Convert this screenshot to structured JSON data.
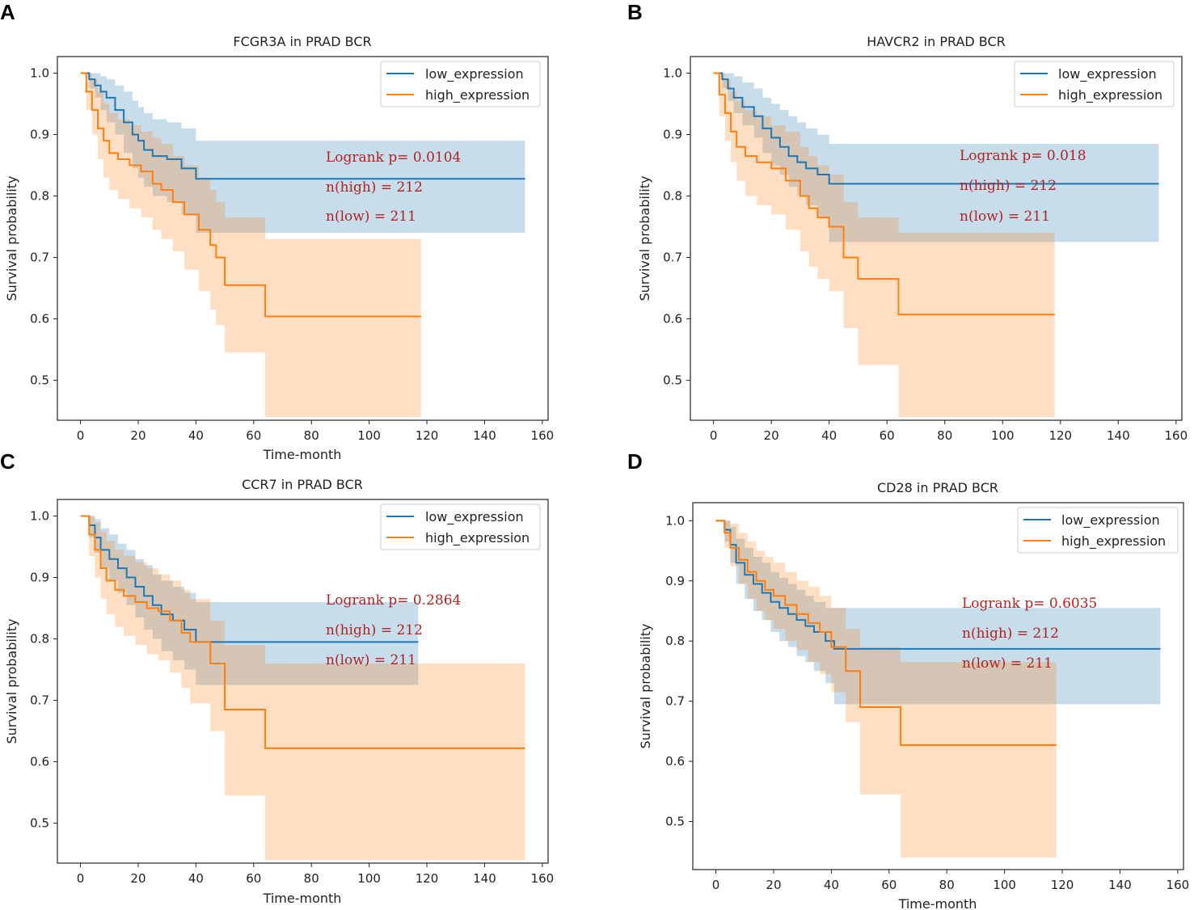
{
  "chart_data": [
    {
      "type": "line",
      "panel": "A",
      "title": "FCGR3A in PRAD BCR",
      "xlabel": "Time-month",
      "ylabel": "Survival probability",
      "xlim": [
        -8,
        162
      ],
      "ylim": [
        0.435,
        1.027
      ],
      "xticks": [
        0,
        20,
        40,
        60,
        80,
        100,
        120,
        140,
        160
      ],
      "yticks": [
        0.5,
        0.6,
        0.7,
        0.8,
        0.9,
        1.0
      ],
      "legend": [
        "low_expression",
        "high_expression"
      ],
      "legend_position": "top-right",
      "annotations": [
        "Logrank p= 0.0104",
        "n(high) = 212",
        "n(low) = 211"
      ],
      "series": [
        {
          "name": "low_expression",
          "color": "#1f77b4",
          "fill": "#1f77b4",
          "x": [
            0,
            3,
            5,
            7,
            9,
            12,
            15,
            18,
            20,
            22,
            25,
            30,
            35,
            40,
            154
          ],
          "y": [
            1.0,
            0.99,
            0.98,
            0.97,
            0.96,
            0.94,
            0.92,
            0.9,
            0.89,
            0.875,
            0.865,
            0.86,
            0.845,
            0.828,
            0.828
          ],
          "ci_upper": [
            1.0,
            1.0,
            1.0,
            0.995,
            0.99,
            0.98,
            0.97,
            0.955,
            0.945,
            0.935,
            0.925,
            0.92,
            0.91,
            0.89,
            0.89
          ],
          "ci_lower": [
            1.0,
            0.975,
            0.96,
            0.94,
            0.92,
            0.9,
            0.87,
            0.845,
            0.83,
            0.815,
            0.8,
            0.79,
            0.77,
            0.74,
            0.74
          ]
        },
        {
          "name": "high_expression",
          "color": "#ff7f0e",
          "fill": "#ff7f0e",
          "x": [
            0,
            2,
            4,
            6,
            8,
            10,
            13,
            17,
            21,
            25,
            28,
            32,
            36,
            41,
            45,
            47,
            50,
            64,
            118
          ],
          "y": [
            1.0,
            0.97,
            0.94,
            0.91,
            0.89,
            0.87,
            0.86,
            0.85,
            0.84,
            0.82,
            0.81,
            0.79,
            0.77,
            0.745,
            0.72,
            0.7,
            0.655,
            0.604,
            0.604
          ],
          "ci_upper": [
            1.0,
            1.0,
            0.99,
            0.97,
            0.95,
            0.935,
            0.925,
            0.915,
            0.905,
            0.895,
            0.885,
            0.865,
            0.85,
            0.83,
            0.81,
            0.79,
            0.765,
            0.73,
            0.73
          ],
          "ci_lower": [
            1.0,
            0.94,
            0.9,
            0.86,
            0.83,
            0.81,
            0.795,
            0.78,
            0.765,
            0.745,
            0.73,
            0.71,
            0.68,
            0.645,
            0.615,
            0.59,
            0.545,
            0.44,
            0.44
          ]
        }
      ]
    },
    {
      "type": "line",
      "panel": "B",
      "title": "HAVCR2 in PRAD BCR",
      "xlabel": "",
      "ylabel": "Survival probability",
      "xlim": [
        -8,
        162
      ],
      "ylim": [
        0.435,
        1.027
      ],
      "xticks": [
        0,
        20,
        40,
        60,
        80,
        100,
        120,
        140,
        160
      ],
      "yticks": [
        0.5,
        0.6,
        0.7,
        0.8,
        0.9,
        1.0
      ],
      "legend": [
        "low_expression",
        "high_expression"
      ],
      "legend_position": "top-right",
      "annotations": [
        "Logrank p= 0.018",
        "n(high) = 212",
        "n(low) = 211"
      ],
      "series": [
        {
          "name": "low_expression",
          "color": "#1f77b4",
          "fill": "#1f77b4",
          "x": [
            0,
            3,
            5,
            7,
            10,
            14,
            17,
            20,
            23,
            26,
            29,
            32,
            36,
            40,
            154
          ],
          "y": [
            1.0,
            0.99,
            0.975,
            0.96,
            0.945,
            0.93,
            0.91,
            0.895,
            0.88,
            0.865,
            0.855,
            0.845,
            0.835,
            0.82,
            0.82
          ],
          "ci_upper": [
            1.0,
            1.0,
            1.0,
            0.995,
            0.985,
            0.975,
            0.96,
            0.95,
            0.94,
            0.93,
            0.92,
            0.91,
            0.9,
            0.885,
            0.885
          ],
          "ci_lower": [
            1.0,
            0.975,
            0.955,
            0.935,
            0.915,
            0.895,
            0.87,
            0.85,
            0.835,
            0.815,
            0.8,
            0.785,
            0.765,
            0.725,
            0.725
          ]
        },
        {
          "name": "high_expression",
          "color": "#ff7f0e",
          "fill": "#ff7f0e",
          "x": [
            0,
            2,
            4,
            6,
            8,
            11,
            15,
            20,
            25,
            30,
            33,
            36,
            40,
            45,
            50,
            64,
            118
          ],
          "y": [
            1.0,
            0.965,
            0.935,
            0.905,
            0.88,
            0.865,
            0.855,
            0.845,
            0.825,
            0.8,
            0.78,
            0.765,
            0.75,
            0.7,
            0.665,
            0.607,
            0.607
          ],
          "ci_upper": [
            1.0,
            1.0,
            0.99,
            0.97,
            0.955,
            0.94,
            0.93,
            0.915,
            0.905,
            0.88,
            0.865,
            0.85,
            0.835,
            0.79,
            0.765,
            0.74,
            0.74
          ],
          "ci_lower": [
            1.0,
            0.93,
            0.89,
            0.855,
            0.825,
            0.8,
            0.785,
            0.77,
            0.745,
            0.71,
            0.685,
            0.665,
            0.645,
            0.585,
            0.525,
            0.44,
            0.44
          ]
        }
      ]
    },
    {
      "type": "line",
      "panel": "C",
      "title": "CCR7 in PRAD BCR",
      "xlabel": "Time-month",
      "ylabel": "Survival probability",
      "xlim": [
        -8,
        162
      ],
      "ylim": [
        0.435,
        1.027
      ],
      "xticks": [
        0,
        20,
        40,
        60,
        80,
        100,
        120,
        140,
        160
      ],
      "yticks": [
        0.5,
        0.6,
        0.7,
        0.8,
        0.9,
        1.0
      ],
      "legend": [
        "low_expression",
        "high_expression"
      ],
      "legend_position": "top-right",
      "annotations": [
        "Logrank p= 0.2864",
        "n(high) = 212",
        "n(low) = 211"
      ],
      "series": [
        {
          "name": "low_expression",
          "color": "#1f77b4",
          "fill": "#1f77b4",
          "x": [
            0,
            3,
            5,
            7,
            10,
            13,
            16,
            19,
            22,
            25,
            28,
            32,
            36,
            40,
            117
          ],
          "y": [
            1.0,
            0.985,
            0.965,
            0.945,
            0.93,
            0.915,
            0.9,
            0.885,
            0.87,
            0.855,
            0.84,
            0.83,
            0.815,
            0.795,
            0.795
          ],
          "ci_upper": [
            1.0,
            1.0,
            0.995,
            0.98,
            0.97,
            0.955,
            0.945,
            0.93,
            0.92,
            0.905,
            0.895,
            0.885,
            0.875,
            0.86,
            0.86
          ],
          "ci_lower": [
            1.0,
            0.965,
            0.94,
            0.915,
            0.895,
            0.875,
            0.855,
            0.835,
            0.815,
            0.8,
            0.78,
            0.765,
            0.75,
            0.725,
            0.725
          ]
        },
        {
          "name": "high_expression",
          "color": "#ff7f0e",
          "fill": "#ff7f0e",
          "x": [
            0,
            3,
            5,
            7,
            9,
            12,
            15,
            19,
            23,
            27,
            31,
            35,
            38,
            45,
            50,
            64,
            154
          ],
          "y": [
            1.0,
            0.97,
            0.945,
            0.915,
            0.895,
            0.88,
            0.87,
            0.86,
            0.85,
            0.845,
            0.83,
            0.81,
            0.795,
            0.76,
            0.685,
            0.622,
            0.622
          ],
          "ci_upper": [
            1.0,
            1.0,
            0.99,
            0.975,
            0.96,
            0.945,
            0.935,
            0.925,
            0.915,
            0.905,
            0.895,
            0.88,
            0.865,
            0.83,
            0.79,
            0.76,
            0.76
          ],
          "ci_lower": [
            1.0,
            0.935,
            0.9,
            0.865,
            0.84,
            0.82,
            0.805,
            0.79,
            0.775,
            0.765,
            0.745,
            0.72,
            0.695,
            0.65,
            0.545,
            0.44,
            0.44
          ]
        }
      ]
    },
    {
      "type": "line",
      "panel": "D",
      "title": "CD28 in PRAD BCR",
      "xlabel": "Time-month",
      "ylabel": "Survival probability",
      "xlim": [
        -8,
        162
      ],
      "ylim": [
        0.42,
        1.03
      ],
      "xticks": [
        0,
        20,
        40,
        60,
        80,
        100,
        120,
        140,
        160
      ],
      "yticks": [
        0.5,
        0.6,
        0.7,
        0.8,
        0.9,
        1.0
      ],
      "legend": [
        "low_expression",
        "high_expression"
      ],
      "legend_position": "top-right",
      "annotations": [
        "Logrank p= 0.6035",
        "n(high) = 212",
        "n(low) = 211"
      ],
      "series": [
        {
          "name": "low_expression",
          "color": "#1f77b4",
          "fill": "#1f77b4",
          "x": [
            0,
            3,
            5,
            7,
            10,
            13,
            16,
            19,
            22,
            25,
            28,
            31,
            34,
            38,
            41,
            154
          ],
          "y": [
            1.0,
            0.985,
            0.96,
            0.93,
            0.91,
            0.895,
            0.88,
            0.865,
            0.855,
            0.845,
            0.835,
            0.825,
            0.815,
            0.8,
            0.787,
            0.787
          ],
          "ci_upper": [
            1.0,
            1.0,
            0.99,
            0.97,
            0.955,
            0.94,
            0.93,
            0.915,
            0.905,
            0.895,
            0.885,
            0.875,
            0.865,
            0.855,
            0.855,
            0.855
          ],
          "ci_lower": [
            1.0,
            0.965,
            0.93,
            0.895,
            0.87,
            0.85,
            0.835,
            0.815,
            0.8,
            0.79,
            0.775,
            0.765,
            0.75,
            0.73,
            0.695,
            0.695
          ]
        },
        {
          "name": "high_expression",
          "color": "#ff7f0e",
          "fill": "#ff7f0e",
          "x": [
            0,
            3,
            5,
            8,
            11,
            14,
            17,
            20,
            24,
            28,
            32,
            36,
            40,
            45,
            50,
            64,
            118
          ],
          "y": [
            1.0,
            0.98,
            0.955,
            0.935,
            0.915,
            0.9,
            0.885,
            0.875,
            0.86,
            0.845,
            0.83,
            0.815,
            0.79,
            0.75,
            0.69,
            0.627,
            0.627
          ],
          "ci_upper": [
            1.0,
            1.0,
            0.995,
            0.98,
            0.965,
            0.95,
            0.94,
            0.93,
            0.915,
            0.9,
            0.89,
            0.875,
            0.855,
            0.82,
            0.79,
            0.765,
            0.765
          ],
          "ci_lower": [
            1.0,
            0.955,
            0.925,
            0.895,
            0.87,
            0.85,
            0.835,
            0.82,
            0.8,
            0.785,
            0.765,
            0.745,
            0.715,
            0.665,
            0.545,
            0.44,
            0.44
          ]
        }
      ]
    }
  ]
}
